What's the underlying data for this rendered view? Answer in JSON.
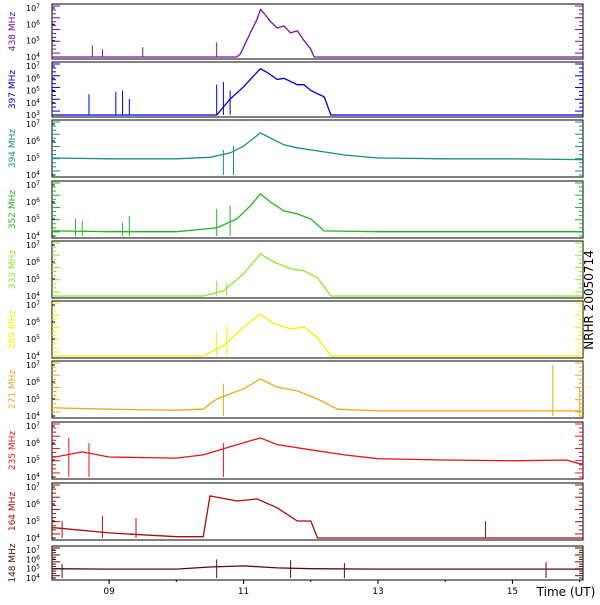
{
  "chart_data": {
    "type": "line",
    "title": "NRHR 20050714",
    "xlabel": "Time (UT)",
    "x_ticks": [
      "09",
      "11",
      "13",
      "15"
    ],
    "x_range_hours": [
      8.15,
      16.05
    ],
    "y_scale": "log",
    "panels": [
      {
        "name": "438 MHz",
        "color": "#7a10a8",
        "ylim": [
          10000,
          10000000
        ],
        "yticks": [
          {
            "label": "10^7",
            "value": 10000000
          },
          {
            "label": "10^6",
            "value": 1000000
          },
          {
            "label": "10^5",
            "value": 100000
          },
          {
            "label": "10^4",
            "value": 10000
          }
        ],
        "series": [
          [
            10.9,
            10000
          ],
          [
            10.95,
            15000
          ],
          [
            11.0,
            40000
          ],
          [
            11.1,
            300000
          ],
          [
            11.2,
            2000000
          ],
          [
            11.25,
            8000000
          ],
          [
            11.3,
            5000000
          ],
          [
            11.4,
            1500000
          ],
          [
            11.5,
            600000
          ],
          [
            11.6,
            800000
          ],
          [
            11.7,
            300000
          ],
          [
            11.8,
            400000
          ],
          [
            11.9,
            100000
          ],
          [
            12.0,
            30000
          ],
          [
            12.05,
            10000
          ]
        ],
        "spikes": [
          [
            8.75,
            50000
          ],
          [
            8.9,
            30000
          ],
          [
            9.5,
            40000
          ],
          [
            10.6,
            80000
          ]
        ]
      },
      {
        "name": "397 MHz",
        "color": "#0000dd",
        "ylim": [
          1000,
          10000000
        ],
        "yticks": [
          {
            "label": "10^7",
            "value": 10000000
          },
          {
            "label": "10^6",
            "value": 1000000
          },
          {
            "label": "10^5",
            "value": 100000
          },
          {
            "label": "10^4",
            "value": 10000
          },
          {
            "label": "10^3",
            "value": 1000
          }
        ],
        "series": [
          [
            10.6,
            1000
          ],
          [
            10.8,
            20000
          ],
          [
            11.0,
            200000
          ],
          [
            11.1,
            800000
          ],
          [
            11.25,
            6000000
          ],
          [
            11.35,
            3000000
          ],
          [
            11.5,
            800000
          ],
          [
            11.6,
            1000000
          ],
          [
            11.8,
            300000
          ],
          [
            11.9,
            300000
          ],
          [
            12.0,
            100000
          ],
          [
            12.2,
            30000
          ],
          [
            12.3,
            1000
          ]
        ],
        "spikes": [
          [
            8.7,
            50000
          ],
          [
            9.1,
            80000
          ],
          [
            9.2,
            100000
          ],
          [
            9.3,
            20000
          ],
          [
            10.6,
            300000
          ],
          [
            10.7,
            500000
          ],
          [
            10.8,
            100000
          ]
        ]
      },
      {
        "name": "394 MHz",
        "color": "#1a8f8a",
        "ylim": [
          10000,
          10000000
        ],
        "yticks": [
          {
            "label": "10^7",
            "value": 10000000
          },
          {
            "label": "10^6",
            "value": 1000000
          },
          {
            "label": "10^5",
            "value": 100000
          },
          {
            "label": "10^4",
            "value": 10000
          }
        ],
        "series": [
          [
            8.2,
            100000
          ],
          [
            9.0,
            90000
          ],
          [
            10.0,
            90000
          ],
          [
            10.5,
            110000
          ],
          [
            10.8,
            200000
          ],
          [
            11.0,
            500000
          ],
          [
            11.25,
            3000000
          ],
          [
            11.4,
            1500000
          ],
          [
            11.6,
            600000
          ],
          [
            11.8,
            400000
          ],
          [
            12.0,
            300000
          ],
          [
            12.5,
            150000
          ],
          [
            13.0,
            100000
          ],
          [
            14.0,
            90000
          ],
          [
            15.0,
            90000
          ],
          [
            16.0,
            80000
          ]
        ],
        "spikes": [
          [
            10.7,
            300000
          ],
          [
            10.85,
            500000
          ]
        ]
      },
      {
        "name": "352 MHz",
        "color": "#22b522",
        "ylim": [
          10000,
          10000000
        ],
        "yticks": [
          {
            "label": "10^7",
            "value": 10000000
          },
          {
            "label": "10^6",
            "value": 1000000
          },
          {
            "label": "10^5",
            "value": 100000
          },
          {
            "label": "10^4",
            "value": 10000
          }
        ],
        "series": [
          [
            8.2,
            20000
          ],
          [
            9.0,
            18000
          ],
          [
            10.0,
            18000
          ],
          [
            10.6,
            30000
          ],
          [
            10.9,
            100000
          ],
          [
            11.1,
            600000
          ],
          [
            11.25,
            3000000
          ],
          [
            11.4,
            1000000
          ],
          [
            11.6,
            300000
          ],
          [
            11.8,
            200000
          ],
          [
            12.0,
            100000
          ],
          [
            12.2,
            20000
          ],
          [
            13.0,
            18000
          ],
          [
            14.0,
            18000
          ],
          [
            15.0,
            18000
          ],
          [
            16.0,
            18000
          ]
        ],
        "spikes": [
          [
            8.5,
            100000
          ],
          [
            8.6,
            80000
          ],
          [
            9.2,
            60000
          ],
          [
            9.3,
            150000
          ],
          [
            10.6,
            400000
          ],
          [
            10.8,
            600000
          ]
        ]
      },
      {
        "name": "333 MHz",
        "color": "#8be82a",
        "ylim": [
          10000,
          10000000
        ],
        "yticks": [
          {
            "label": "10^7",
            "value": 10000000
          },
          {
            "label": "10^6",
            "value": 1000000
          },
          {
            "label": "10^5",
            "value": 100000
          },
          {
            "label": "10^4",
            "value": 10000
          }
        ],
        "series": [
          [
            8.2,
            10000
          ],
          [
            10.4,
            10000
          ],
          [
            10.7,
            20000
          ],
          [
            11.0,
            200000
          ],
          [
            11.25,
            3000000
          ],
          [
            11.45,
            1000000
          ],
          [
            11.7,
            400000
          ],
          [
            11.9,
            300000
          ],
          [
            12.1,
            120000
          ],
          [
            12.3,
            10000
          ],
          [
            16.0,
            10000
          ]
        ],
        "spikes": [
          [
            10.6,
            80000
          ],
          [
            10.75,
            60000
          ]
        ]
      },
      {
        "name": "289 MHz",
        "color": "#f0f000",
        "ylim": [
          10000,
          10000000
        ],
        "yticks": [
          {
            "label": "10^7",
            "value": 10000000
          },
          {
            "label": "10^6",
            "value": 1000000
          },
          {
            "label": "10^5",
            "value": 100000
          },
          {
            "label": "10^4",
            "value": 10000
          }
        ],
        "series": [
          [
            8.2,
            10000
          ],
          [
            10.4,
            10000
          ],
          [
            10.7,
            40000
          ],
          [
            11.0,
            500000
          ],
          [
            11.25,
            3000000
          ],
          [
            11.45,
            800000
          ],
          [
            11.7,
            400000
          ],
          [
            11.9,
            500000
          ],
          [
            12.1,
            120000
          ],
          [
            12.3,
            10000
          ],
          [
            16.0,
            10000
          ]
        ],
        "spikes": [
          [
            10.6,
            300000
          ],
          [
            10.75,
            700000
          ]
        ]
      },
      {
        "name": "271 MHz",
        "color": "#f0a818",
        "ylim": [
          10000,
          10000000
        ],
        "yticks": [
          {
            "label": "10^7",
            "value": 10000000
          },
          {
            "label": "10^6",
            "value": 1000000
          },
          {
            "label": "10^5",
            "value": 100000
          },
          {
            "label": "10^4",
            "value": 10000
          }
        ],
        "series": [
          [
            8.2,
            30000
          ],
          [
            9.0,
            25000
          ],
          [
            10.0,
            22000
          ],
          [
            10.4,
            25000
          ],
          [
            10.6,
            100000
          ],
          [
            11.0,
            400000
          ],
          [
            11.25,
            1500000
          ],
          [
            11.5,
            500000
          ],
          [
            11.8,
            300000
          ],
          [
            12.1,
            100000
          ],
          [
            12.4,
            25000
          ],
          [
            13.0,
            20000
          ],
          [
            14.0,
            20000
          ],
          [
            15.0,
            20000
          ],
          [
            16.0,
            20000
          ]
        ],
        "spikes": [
          [
            10.7,
            800000
          ],
          [
            15.6,
            10000000
          ],
          [
            16.0,
            500000
          ]
        ]
      },
      {
        "name": "235 MHz",
        "color": "#e01818",
        "ylim": [
          10000,
          10000000
        ],
        "yticks": [
          {
            "label": "10^7",
            "value": 10000000
          },
          {
            "label": "10^6",
            "value": 1000000
          },
          {
            "label": "10^5",
            "value": 100000
          },
          {
            "label": "10^4",
            "value": 10000
          }
        ],
        "series": [
          [
            8.2,
            150000
          ],
          [
            8.6,
            300000
          ],
          [
            9.0,
            150000
          ],
          [
            10.0,
            130000
          ],
          [
            10.4,
            200000
          ],
          [
            10.8,
            600000
          ],
          [
            11.25,
            2000000
          ],
          [
            11.5,
            800000
          ],
          [
            12.0,
            400000
          ],
          [
            12.5,
            200000
          ],
          [
            13.0,
            120000
          ],
          [
            14.0,
            100000
          ],
          [
            15.0,
            90000
          ],
          [
            15.8,
            100000
          ],
          [
            16.0,
            60000
          ]
        ],
        "spikes": [
          [
            8.4,
            2000000
          ],
          [
            8.7,
            1000000
          ],
          [
            10.7,
            1000000
          ]
        ]
      },
      {
        "name": "164 MHz",
        "color": "#aa0a0a",
        "ylim": [
          10000,
          10000000
        ],
        "yticks": [
          {
            "label": "10^7",
            "value": 10000000
          },
          {
            "label": "10^6",
            "value": 1000000
          },
          {
            "label": "10^5",
            "value": 100000
          },
          {
            "label": "10^4",
            "value": 10000
          }
        ],
        "series": [
          [
            8.2,
            40000
          ],
          [
            9.0,
            20000
          ],
          [
            10.0,
            12000
          ],
          [
            10.4,
            12000
          ],
          [
            10.5,
            3000000
          ],
          [
            10.9,
            1500000
          ],
          [
            11.2,
            2000000
          ],
          [
            11.5,
            600000
          ],
          [
            11.8,
            100000
          ],
          [
            12.0,
            100000
          ],
          [
            12.1,
            10000
          ],
          [
            16.0,
            10000
          ]
        ],
        "spikes": [
          [
            8.3,
            100000
          ],
          [
            8.9,
            200000
          ],
          [
            9.4,
            150000
          ],
          [
            14.6,
            100000
          ]
        ]
      },
      {
        "name": "148 MHz",
        "color": "#5a0a0a",
        "ylim": [
          10000,
          10000000
        ],
        "yticks": [
          {
            "label": "10^7",
            "value": 10000000
          },
          {
            "label": "10^6",
            "value": 1000000
          },
          {
            "label": "10^5",
            "value": 100000
          },
          {
            "label": "10^4",
            "value": 10000
          }
        ],
        "series": [
          [
            8.2,
            100000
          ],
          [
            9.0,
            90000
          ],
          [
            10.0,
            90000
          ],
          [
            10.5,
            150000
          ],
          [
            11.0,
            200000
          ],
          [
            11.5,
            120000
          ],
          [
            12.0,
            100000
          ],
          [
            13.0,
            90000
          ],
          [
            14.0,
            90000
          ],
          [
            15.0,
            90000
          ],
          [
            16.0,
            90000
          ]
        ],
        "spikes": [
          [
            8.3,
            300000
          ],
          [
            10.6,
            1000000
          ],
          [
            11.3,
            10000
          ],
          [
            11.7,
            800000
          ],
          [
            12.5,
            400000
          ],
          [
            15.5,
            500000
          ]
        ]
      }
    ]
  }
}
